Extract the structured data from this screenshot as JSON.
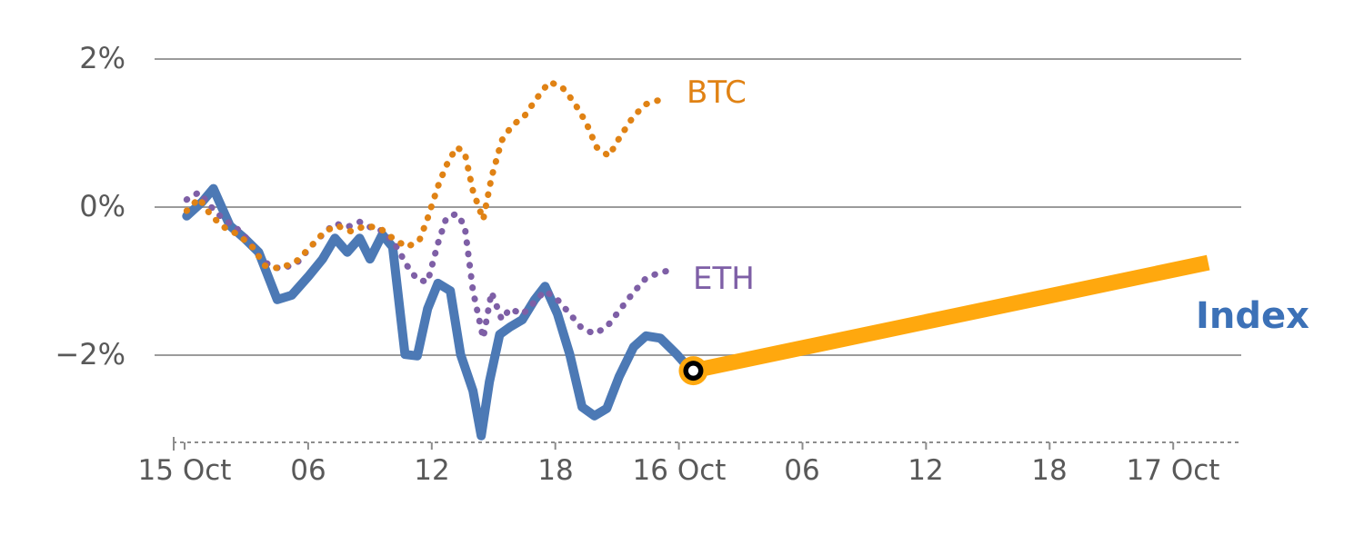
{
  "chart_data": {
    "type": "line",
    "title": "",
    "xlabel": "",
    "ylabel": "",
    "x_unit": "hours since 15 Oct 00:00",
    "xlim": [
      0,
      51
    ],
    "ylim": [
      -3.3,
      2.4
    ],
    "grid": "horizontal",
    "legend_position": "inline-labels",
    "colors": {
      "grid": "#9B9B9B",
      "axis_line": "#8C8C8C",
      "axis_text": "#595959",
      "btc": "#E08214",
      "eth": "#7E5FA6",
      "index": "#4C79B5",
      "projection": "#FFA80E",
      "marker_ring": "#000000",
      "marker_inner": "#FFFFFF",
      "index_label": "#3C71B7"
    },
    "y_ticks": [
      {
        "pct": 2,
        "label": "2%"
      },
      {
        "pct": 0,
        "label": "0%"
      },
      {
        "pct": -2,
        "label": "−2%"
      }
    ],
    "x_ticks": [
      {
        "hour": 0,
        "label": "15 Oct"
      },
      {
        "hour": 6,
        "label": "06"
      },
      {
        "hour": 12,
        "label": "12"
      },
      {
        "hour": 18,
        "label": "18"
      },
      {
        "hour": 24,
        "label": "16 Oct"
      },
      {
        "hour": 30,
        "label": "06"
      },
      {
        "hour": 36,
        "label": "12"
      },
      {
        "hour": 42,
        "label": "18"
      },
      {
        "hour": 48,
        "label": "17 Oct"
      }
    ],
    "series": [
      {
        "name": "Index",
        "label": "Index",
        "style": "solid",
        "width": 10,
        "color": "#4C79B5",
        "points": [
          [
            0.1,
            -0.12
          ],
          [
            0.85,
            0.07
          ],
          [
            1.4,
            0.25
          ],
          [
            2.2,
            -0.25
          ],
          [
            2.9,
            -0.42
          ],
          [
            3.6,
            -0.61
          ],
          [
            4.5,
            -1.25
          ],
          [
            5.2,
            -1.19
          ],
          [
            6.0,
            -0.94
          ],
          [
            6.7,
            -0.7
          ],
          [
            7.3,
            -0.42
          ],
          [
            7.9,
            -0.61
          ],
          [
            8.5,
            -0.42
          ],
          [
            9.0,
            -0.7
          ],
          [
            9.6,
            -0.37
          ],
          [
            10.1,
            -0.54
          ],
          [
            10.7,
            -1.99
          ],
          [
            11.3,
            -2.01
          ],
          [
            11.8,
            -1.37
          ],
          [
            12.3,
            -1.03
          ],
          [
            12.9,
            -1.13
          ],
          [
            13.4,
            -1.99
          ],
          [
            14.0,
            -2.48
          ],
          [
            14.4,
            -3.09
          ],
          [
            14.8,
            -2.36
          ],
          [
            15.3,
            -1.72
          ],
          [
            15.8,
            -1.62
          ],
          [
            16.4,
            -1.52
          ],
          [
            17.0,
            -1.25
          ],
          [
            17.5,
            -1.07
          ],
          [
            18.1,
            -1.44
          ],
          [
            18.7,
            -1.99
          ],
          [
            19.3,
            -2.7
          ],
          [
            19.9,
            -2.82
          ],
          [
            20.5,
            -2.72
          ],
          [
            21.1,
            -2.29
          ],
          [
            21.8,
            -1.89
          ],
          [
            22.4,
            -1.74
          ],
          [
            23.1,
            -1.77
          ],
          [
            23.9,
            -1.99
          ],
          [
            24.6,
            -2.21
          ]
        ]
      },
      {
        "name": "ETH",
        "label": "ETH",
        "style": "dotted",
        "width": 7,
        "color": "#7E5FA6",
        "points": [
          [
            0.1,
            0.1
          ],
          [
            0.7,
            0.2
          ],
          [
            1.3,
            0.0
          ],
          [
            1.9,
            -0.17
          ],
          [
            2.4,
            -0.25
          ],
          [
            3.0,
            -0.42
          ],
          [
            3.6,
            -0.66
          ],
          [
            4.2,
            -0.81
          ],
          [
            4.8,
            -0.83
          ],
          [
            5.5,
            -0.74
          ],
          [
            6.1,
            -0.54
          ],
          [
            6.7,
            -0.37
          ],
          [
            7.3,
            -0.22
          ],
          [
            7.9,
            -0.27
          ],
          [
            8.5,
            -0.2
          ],
          [
            9.0,
            -0.27
          ],
          [
            9.6,
            -0.32
          ],
          [
            10.2,
            -0.49
          ],
          [
            10.8,
            -0.79
          ],
          [
            11.3,
            -0.98
          ],
          [
            11.8,
            -1.01
          ],
          [
            12.3,
            -0.49
          ],
          [
            12.7,
            -0.15
          ],
          [
            13.2,
            -0.09
          ],
          [
            13.6,
            -0.25
          ],
          [
            14.0,
            -1.13
          ],
          [
            14.5,
            -1.77
          ],
          [
            14.9,
            -1.15
          ],
          [
            15.4,
            -1.52
          ],
          [
            15.8,
            -1.37
          ],
          [
            16.4,
            -1.45
          ],
          [
            17.0,
            -1.28
          ],
          [
            17.5,
            -1.13
          ],
          [
            18.1,
            -1.25
          ],
          [
            18.7,
            -1.44
          ],
          [
            19.3,
            -1.64
          ],
          [
            19.9,
            -1.71
          ],
          [
            20.5,
            -1.62
          ],
          [
            21.1,
            -1.4
          ],
          [
            21.8,
            -1.15
          ],
          [
            22.4,
            -0.96
          ],
          [
            23.1,
            -0.88
          ],
          [
            23.7,
            -0.85
          ]
        ]
      },
      {
        "name": "BTC",
        "label": "BTC",
        "style": "dotted",
        "width": 7,
        "color": "#E08214",
        "points": [
          [
            0.1,
            -0.05
          ],
          [
            0.7,
            0.12
          ],
          [
            1.3,
            -0.12
          ],
          [
            2.0,
            -0.29
          ],
          [
            2.6,
            -0.37
          ],
          [
            3.3,
            -0.54
          ],
          [
            3.9,
            -0.79
          ],
          [
            4.6,
            -0.83
          ],
          [
            5.4,
            -0.74
          ],
          [
            6.1,
            -0.54
          ],
          [
            6.8,
            -0.33
          ],
          [
            7.4,
            -0.25
          ],
          [
            8.1,
            -0.33
          ],
          [
            8.8,
            -0.25
          ],
          [
            9.5,
            -0.29
          ],
          [
            10.1,
            -0.42
          ],
          [
            10.8,
            -0.54
          ],
          [
            11.4,
            -0.45
          ],
          [
            11.8,
            -0.15
          ],
          [
            12.3,
            0.28
          ],
          [
            12.7,
            0.56
          ],
          [
            13.2,
            0.81
          ],
          [
            13.6,
            0.74
          ],
          [
            14.0,
            0.22
          ],
          [
            14.5,
            -0.17
          ],
          [
            14.9,
            0.4
          ],
          [
            15.4,
            0.9
          ],
          [
            15.9,
            1.1
          ],
          [
            16.5,
            1.23
          ],
          [
            17.1,
            1.47
          ],
          [
            17.7,
            1.69
          ],
          [
            18.3,
            1.63
          ],
          [
            18.9,
            1.42
          ],
          [
            19.5,
            1.14
          ],
          [
            20.0,
            0.81
          ],
          [
            20.6,
            0.69
          ],
          [
            21.1,
            0.93
          ],
          [
            21.8,
            1.23
          ],
          [
            22.4,
            1.39
          ],
          [
            23.1,
            1.45
          ]
        ]
      }
    ],
    "projection": {
      "name": "Index projection",
      "color": "#FFA80E",
      "width": 17,
      "from": [
        24.7,
        -2.21
      ],
      "to": [
        49.7,
        -0.75
      ]
    },
    "marker": {
      "hour": 24.7,
      "pct": -2.21,
      "outer_color": "#FFA80E",
      "ring_color": "#000000",
      "inner_color": "#FFFFFF"
    },
    "labels": {
      "btc": "BTC",
      "eth": "ETH",
      "index": "Index"
    }
  }
}
